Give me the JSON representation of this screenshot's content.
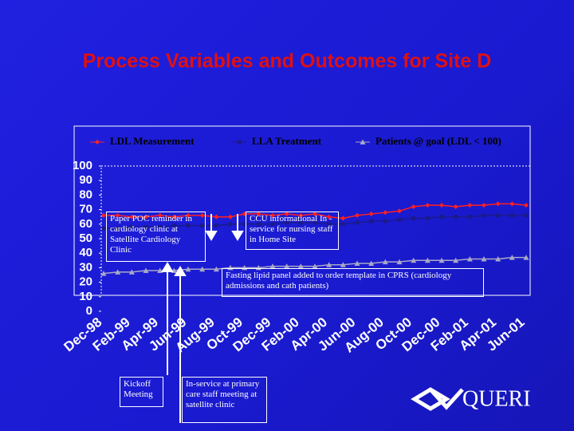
{
  "chart_data": {
    "type": "line",
    "title": "Process Variables and Outcomes for Site D",
    "categories": [
      "Dec-98",
      null,
      "Feb-99",
      null,
      "Apr-99",
      null,
      "Jun-99",
      null,
      "Aug-99",
      null,
      "Oct-99",
      null,
      "Dec-99",
      null,
      "Feb-00",
      null,
      "Apr-00",
      null,
      "Jun-00",
      null,
      "Aug-00",
      null,
      "Oct-00",
      null,
      "Dec-00",
      null,
      "Feb-01",
      null,
      "Apr-01",
      null,
      "Jun-01"
    ],
    "series": [
      {
        "name": "LDL Measurement",
        "color": "#ff2020",
        "marker": "diamond",
        "values": [
          66,
          66,
          65,
          65,
          66,
          65,
          66,
          66,
          65,
          65,
          67,
          67,
          66,
          67,
          66,
          67,
          65,
          64,
          66,
          67,
          68,
          69,
          72,
          73,
          73,
          72,
          73,
          73,
          74,
          74,
          73
        ]
      },
      {
        "name": "LLA Treatment",
        "color": "#1a1a8c",
        "marker": "square",
        "values": [
          57,
          57,
          58,
          58,
          58,
          59,
          59,
          59,
          59,
          60,
          60,
          60,
          60,
          61,
          61,
          61,
          60,
          60,
          61,
          62,
          62,
          63,
          64,
          64,
          65,
          65,
          65,
          66,
          66,
          66,
          66
        ]
      },
      {
        "name": "Patients @ goal (LDL < 100)",
        "color": "#a8a8c8",
        "marker": "triangle",
        "values": [
          26,
          27,
          27,
          28,
          28,
          28,
          29,
          29,
          29,
          30,
          30,
          30,
          31,
          31,
          31,
          31,
          32,
          32,
          33,
          33,
          34,
          34,
          35,
          35,
          35,
          35,
          36,
          36,
          36,
          37,
          37
        ]
      }
    ],
    "ylim": [
      0,
      100
    ],
    "yticks": [
      0,
      10,
      20,
      30,
      40,
      50,
      60,
      70,
      80,
      90,
      100
    ],
    "legend": "top",
    "annotations": [
      "Paper POC reminder in cardiology clinic at Satellite Cardiology Clinic",
      "CCU informational In -service for nursing staff in Home Site",
      "Fasting lipid panel added to order template in CPRS (cardiology admissions and cath patients)",
      "Kickoff Meeting",
      "In-service at primary care staff meeting at satellite clinic"
    ]
  },
  "logo": "QUERI"
}
